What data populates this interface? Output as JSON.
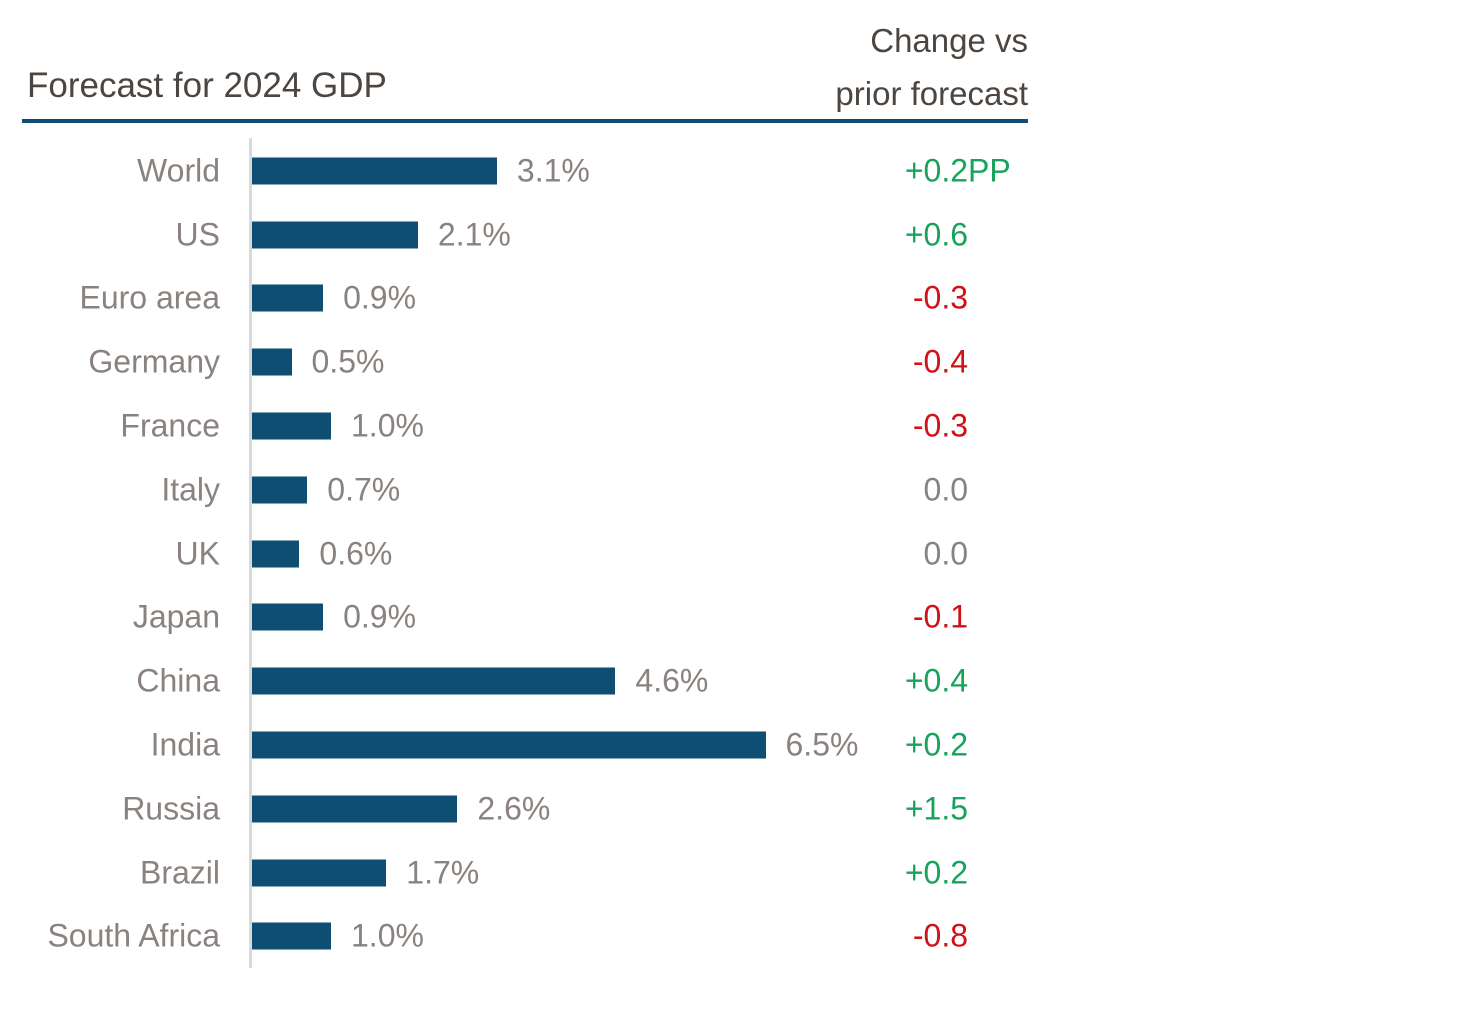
{
  "header": {
    "title": "Forecast for 2024 GDP",
    "change_header_line1": "Change vs",
    "change_header_line2": "prior forecast"
  },
  "colors": {
    "bar": "#0e4e72",
    "rule": "#0e4e72",
    "axis": "#d9d9d9",
    "title_text": "#4c4540",
    "label_text": "#8a827e",
    "positive": "#18a35a",
    "negative": "#d01116",
    "neutral": "#8a827e"
  },
  "chart_data": {
    "type": "bar",
    "orientation": "horizontal",
    "title": "Forecast for 2024 GDP",
    "secondary_column_title": "Change vs prior forecast",
    "xlabel": "",
    "ylabel": "",
    "xlim": [
      0,
      6.5
    ],
    "grid": false,
    "legend": "none",
    "categories": [
      "World",
      "US",
      "Euro area",
      "Germany",
      "France",
      "Italy",
      "UK",
      "Japan",
      "China",
      "India",
      "Russia",
      "Brazil",
      "South Africa"
    ],
    "values": [
      3.1,
      2.1,
      0.9,
      0.5,
      1.0,
      0.7,
      0.6,
      0.9,
      4.6,
      6.5,
      2.6,
      1.7,
      1.0
    ],
    "changes_vs_prior": [
      0.2,
      0.6,
      -0.3,
      -0.4,
      -0.3,
      0.0,
      0.0,
      -0.1,
      0.4,
      0.2,
      1.5,
      0.2,
      -0.8
    ],
    "change_unit": "PP",
    "rows": [
      {
        "label": "World",
        "value": 3.1,
        "value_label": "3.1%",
        "change": "+0.2",
        "change_suffix": "PP",
        "change_direction": "positive"
      },
      {
        "label": "US",
        "value": 2.1,
        "value_label": "2.1%",
        "change": "+0.6",
        "change_suffix": "",
        "change_direction": "positive"
      },
      {
        "label": "Euro area",
        "value": 0.9,
        "value_label": "0.9%",
        "change": "-0.3",
        "change_suffix": "",
        "change_direction": "negative"
      },
      {
        "label": "Germany",
        "value": 0.5,
        "value_label": "0.5%",
        "change": "-0.4",
        "change_suffix": "",
        "change_direction": "negative"
      },
      {
        "label": "France",
        "value": 1.0,
        "value_label": "1.0%",
        "change": "-0.3",
        "change_suffix": "",
        "change_direction": "negative"
      },
      {
        "label": "Italy",
        "value": 0.7,
        "value_label": "0.7%",
        "change": "0.0",
        "change_suffix": "",
        "change_direction": "neutral"
      },
      {
        "label": "UK",
        "value": 0.6,
        "value_label": "0.6%",
        "change": "0.0",
        "change_suffix": "",
        "change_direction": "neutral"
      },
      {
        "label": "Japan",
        "value": 0.9,
        "value_label": "0.9%",
        "change": "-0.1",
        "change_suffix": "",
        "change_direction": "negative"
      },
      {
        "label": "China",
        "value": 4.6,
        "value_label": "4.6%",
        "change": "+0.4",
        "change_suffix": "",
        "change_direction": "positive"
      },
      {
        "label": "India",
        "value": 6.5,
        "value_label": "6.5%",
        "change": "+0.2",
        "change_suffix": "",
        "change_direction": "positive"
      },
      {
        "label": "Russia",
        "value": 2.6,
        "value_label": "2.6%",
        "change": "+1.5",
        "change_suffix": "",
        "change_direction": "positive"
      },
      {
        "label": "Brazil",
        "value": 1.7,
        "value_label": "1.7%",
        "change": "+0.2",
        "change_suffix": "",
        "change_direction": "positive"
      },
      {
        "label": "South Africa",
        "value": 1.0,
        "value_label": "1.0%",
        "change": "-0.8",
        "change_suffix": "",
        "change_direction": "negative"
      }
    ]
  }
}
